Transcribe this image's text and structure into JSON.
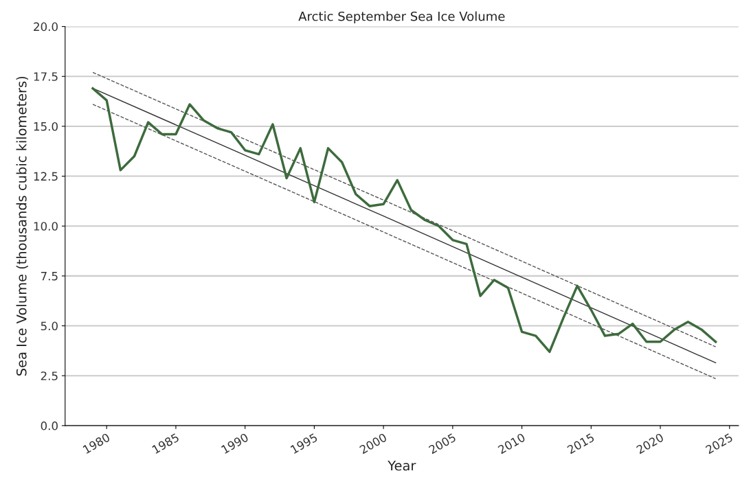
{
  "chart_data": {
    "type": "line",
    "title": "Arctic September Sea Ice Volume",
    "xlabel": "Year",
    "ylabel": "Sea Ice Volume (thousands cubic kilometers)",
    "x": [
      1979,
      1980,
      1981,
      1982,
      1983,
      1984,
      1985,
      1986,
      1987,
      1988,
      1989,
      1990,
      1991,
      1992,
      1993,
      1994,
      1995,
      1996,
      1997,
      1998,
      1999,
      2000,
      2001,
      2002,
      2003,
      2004,
      2005,
      2006,
      2007,
      2008,
      2009,
      2010,
      2011,
      2012,
      2013,
      2014,
      2015,
      2016,
      2017,
      2018,
      2019,
      2020,
      2021,
      2022,
      2023,
      2024
    ],
    "series": [
      {
        "color": "#3d6b3d",
        "values": [
          16.9,
          16.3,
          12.8,
          13.5,
          15.2,
          14.6,
          14.6,
          16.1,
          15.3,
          14.9,
          14.7,
          13.8,
          13.6,
          15.1,
          12.4,
          13.9,
          11.2,
          13.9,
          13.2,
          11.6,
          11.0,
          11.1,
          12.3,
          10.8,
          10.3,
          10.0,
          9.3,
          9.1,
          6.5,
          7.3,
          6.9,
          4.7,
          4.5,
          3.7,
          5.4,
          7.0,
          5.8,
          4.5,
          4.6,
          5.1,
          4.2,
          4.2,
          4.8,
          5.2,
          4.8,
          4.2
        ]
      },
      {
        "type": "line",
        "color": "#333333",
        "x": [
          1979,
          2000,
          2024
        ],
        "values": [
          16.9,
          10.5,
          3.15
        ],
        "line_style": "solid"
      },
      {
        "type": "line",
        "color": "#555555",
        "x": [
          1979,
          2000,
          2024
        ],
        "values": [
          17.7,
          11.3,
          3.95
        ],
        "line_style": "dashed"
      },
      {
        "type": "line",
        "color": "#555555",
        "x": [
          1979,
          2000,
          2024
        ],
        "values": [
          16.1,
          9.7,
          2.35
        ],
        "line_style": "dashed"
      }
    ],
    "xlim": [
      1977.0,
      2025.65
    ],
    "xticks": [
      1980,
      1985,
      1990,
      1995,
      2000,
      2005,
      2010,
      2015,
      2020,
      2025
    ],
    "ylim": [
      0,
      20
    ],
    "yticks": [
      {
        "value": 0,
        "label": "0.0"
      },
      {
        "value": 2.5,
        "label": "2.5"
      },
      {
        "value": 5,
        "label": "5.0"
      },
      {
        "value": 7.5,
        "label": "7.5"
      },
      {
        "value": 10,
        "label": "10.0"
      },
      {
        "value": 12.5,
        "label": "12.5"
      },
      {
        "value": 15,
        "label": "15.0"
      },
      {
        "value": 17.5,
        "label": "17.5"
      },
      {
        "value": 20,
        "label": "20.0"
      }
    ],
    "grid": "y",
    "marker": "none",
    "line_style": "solid"
  }
}
